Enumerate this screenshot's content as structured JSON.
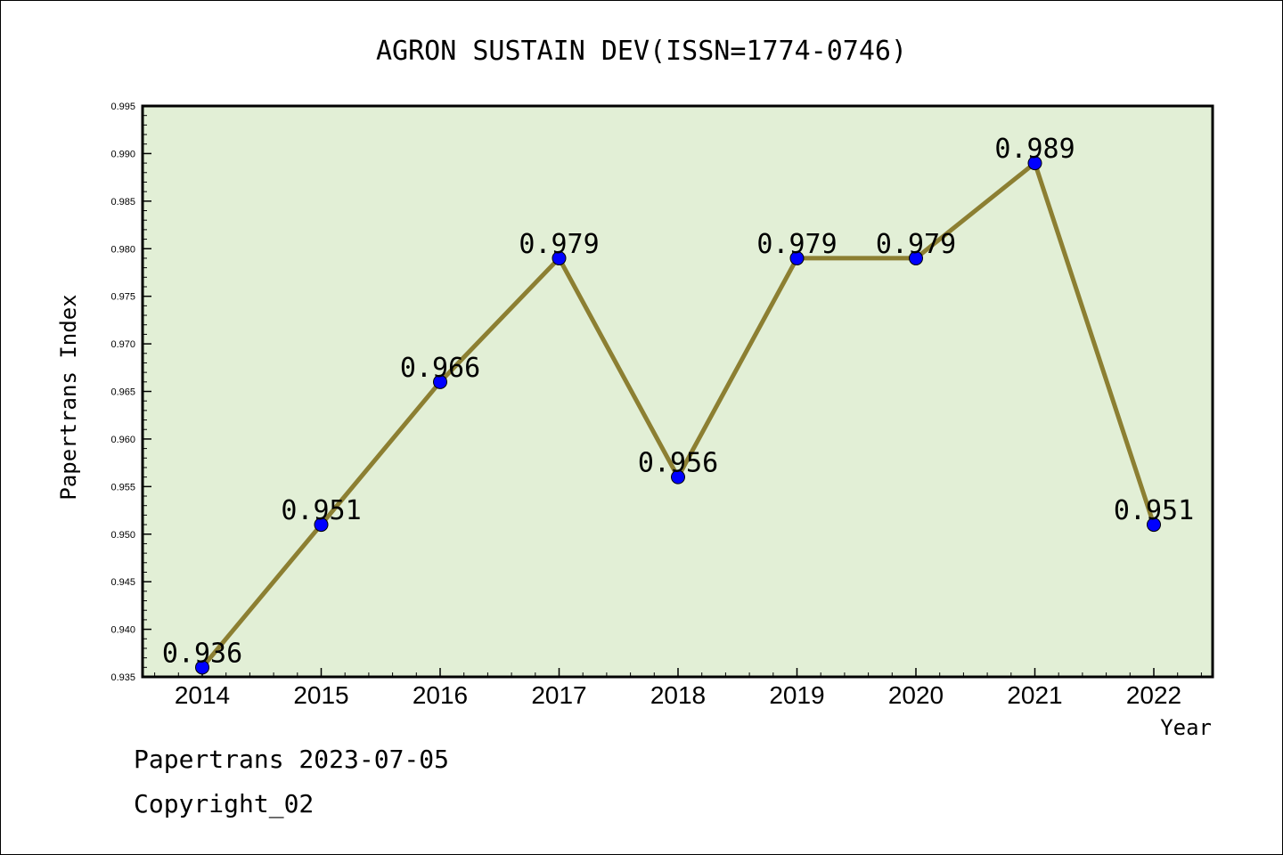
{
  "chart_data": {
    "type": "line",
    "title": "AGRON SUSTAIN DEV(ISSN=1774-0746)",
    "xlabel": "Year",
    "ylabel": "Papertrans Index",
    "categories": [
      "2014",
      "2015",
      "2016",
      "2017",
      "2018",
      "2019",
      "2020",
      "2021",
      "2022"
    ],
    "series": [
      {
        "values": [
          0.936,
          0.951,
          0.966,
          0.979,
          0.956,
          0.979,
          0.979,
          0.989,
          0.951
        ]
      }
    ],
    "data_labels": [
      "0.936",
      "0.951",
      "0.966",
      "0.979",
      "0.956",
      "0.979",
      "0.979",
      "0.989",
      "0.951"
    ],
    "ylim": [
      0.935,
      0.995
    ],
    "yticks": [
      "0.935",
      "0.940",
      "0.945",
      "0.950",
      "0.955",
      "0.960",
      "0.965",
      "0.970",
      "0.975",
      "0.980",
      "0.985",
      "0.990",
      "0.995"
    ],
    "grid": false,
    "colors": {
      "plot_background": "#e2efd6",
      "line": "#8c7f32",
      "marker": "#0000ff"
    }
  },
  "footer": {
    "line1": "Papertrans 2023-07-05",
    "line2": "Copyright_02"
  }
}
